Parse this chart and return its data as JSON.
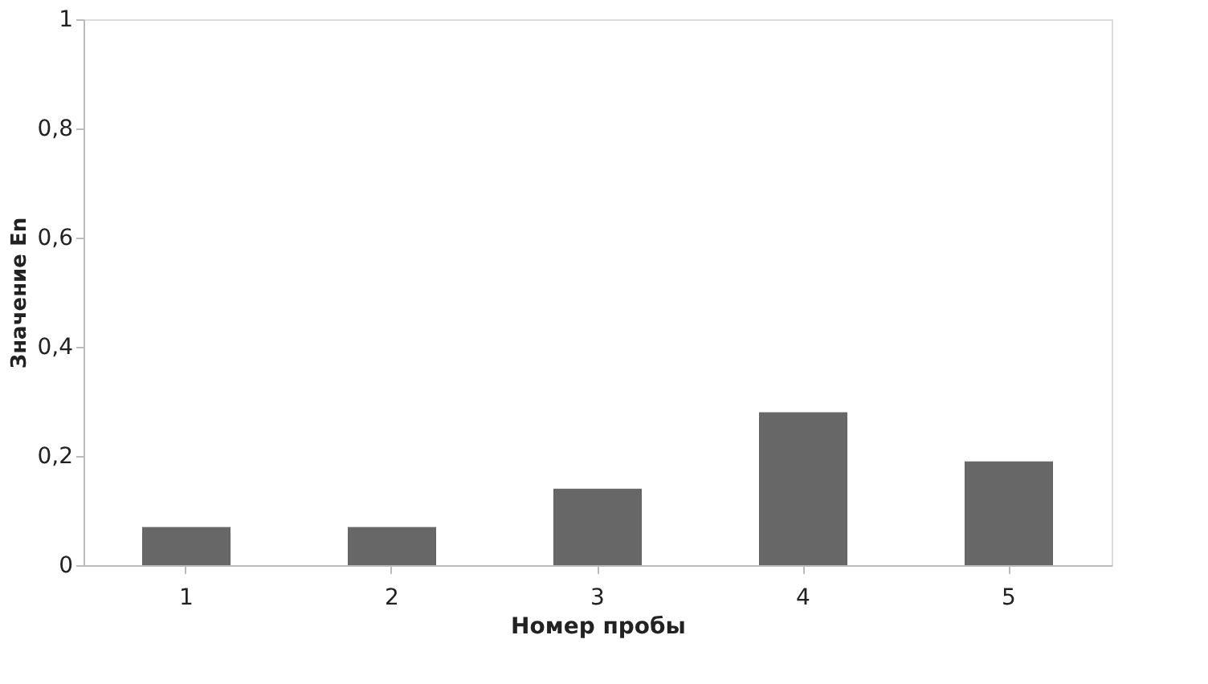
{
  "chart_data": {
    "type": "bar",
    "xlabel": "Номер пробы",
    "ylabel": "Значение En",
    "categories": [
      "1",
      "2",
      "3",
      "4",
      "5"
    ],
    "values": [
      0.07,
      0.07,
      0.14,
      0.28,
      0.19
    ],
    "color": "#676767",
    "ylim": [
      0,
      1
    ],
    "yticks": [
      0,
      {
        "value": 0.2,
        "label": "0,2"
      },
      {
        "value": 0.4,
        "label": "0,4"
      },
      {
        "value": 0.6,
        "label": "0,6"
      },
      {
        "value": 0.8,
        "label": "0,8"
      },
      1
    ],
    "grid": false
  }
}
